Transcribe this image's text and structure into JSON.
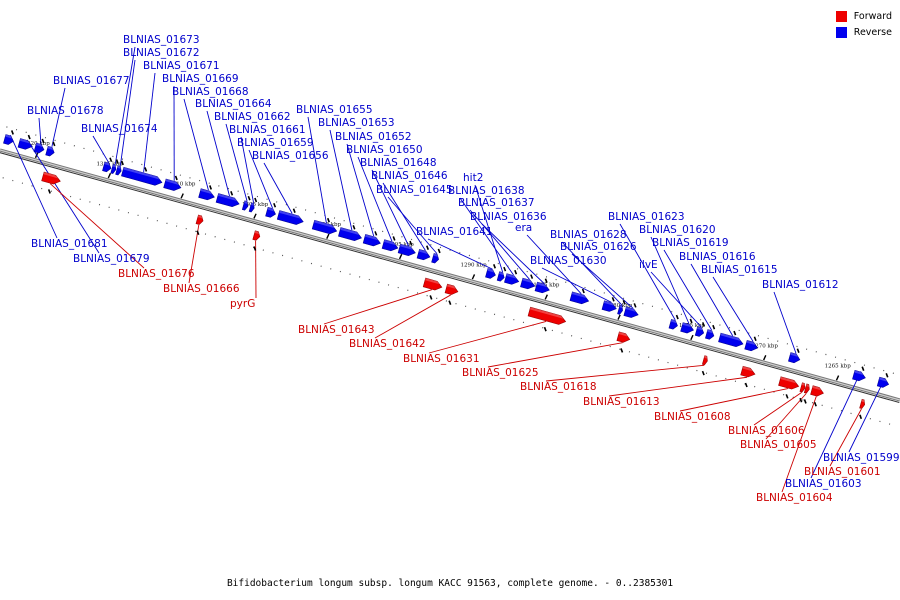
{
  "legend": [
    {
      "label": "Forward",
      "color": "#ee0000"
    },
    {
      "label": "Reverse",
      "color": "#0000ee"
    }
  ],
  "caption": "Bifidobacterium longum subsp. longum KACC 91563, complete genome. - 0..2385301",
  "ticks": [
    {
      "label": "1320 kbp",
      "pos": 1320
    },
    {
      "label": "1315 kbp",
      "pos": 1315
    },
    {
      "label": "1310 kbp",
      "pos": 1310
    },
    {
      "label": "1305 kbp",
      "pos": 1305
    },
    {
      "label": "1300 kbp",
      "pos": 1300
    },
    {
      "label": "1295 kbp",
      "pos": 1295
    },
    {
      "label": "1290 kbp",
      "pos": 1290
    },
    {
      "label": "1285 kbp",
      "pos": 1285
    },
    {
      "label": "1280 kbp",
      "pos": 1280
    },
    {
      "label": "1275 kbp",
      "pos": 1275
    },
    {
      "label": "1270 kbp",
      "pos": 1270
    },
    {
      "label": "1265 kbp",
      "pos": 1265
    }
  ],
  "genes": [
    {
      "name": "BLNIAS_01681",
      "strand": "reverse",
      "start": 1322.3,
      "end": 1321.7
    },
    {
      "name": "BLNIAS_01679",
      "strand": "reverse",
      "start": 1321.3,
      "end": 1320.4
    },
    {
      "name": "BLNIAS_01678",
      "strand": "reverse",
      "start": 1320.2,
      "end": 1319.6
    },
    {
      "name": "BLNIAS_01677",
      "strand": "reverse",
      "start": 1319.4,
      "end": 1318.9
    },
    {
      "name": "BLNIAS_01676",
      "strand": "forward",
      "start": 1319.2,
      "end": 1318.0
    },
    {
      "name": "BLNIAS_01674",
      "strand": "reverse",
      "start": 1315.5,
      "end": 1315.0
    },
    {
      "name": "BLNIAS_01673",
      "strand": "reverse",
      "start": 1314.9,
      "end": 1314.7
    },
    {
      "name": "BLNIAS_01672",
      "strand": "reverse",
      "start": 1314.6,
      "end": 1314.3
    },
    {
      "name": "BLNIAS_01671",
      "strand": "reverse",
      "start": 1314.2,
      "end": 1311.5
    },
    {
      "name": "BLNIAS_01669",
      "strand": "reverse",
      "start": 1311.3,
      "end": 1310.2
    },
    {
      "name": "BLNIAS_01668",
      "strand": "reverse",
      "start": 1308.9,
      "end": 1307.9
    },
    {
      "name": "BLNIAS_01666",
      "strand": "forward",
      "start": 1308.6,
      "end": 1308.2
    },
    {
      "name": "BLNIAS_01664",
      "strand": "reverse",
      "start": 1307.7,
      "end": 1306.2
    },
    {
      "name": "BLNIAS_01662",
      "strand": "reverse",
      "start": 1305.9,
      "end": 1305.6
    },
    {
      "name": "BLNIAS_01661",
      "strand": "reverse",
      "start": 1305.4,
      "end": 1305.2
    },
    {
      "name": "pyrG",
      "strand": "forward",
      "start": 1304.7,
      "end": 1304.3
    },
    {
      "name": "BLNIAS_01659",
      "strand": "reverse",
      "start": 1304.3,
      "end": 1303.7
    },
    {
      "name": "BLNIAS_01656",
      "strand": "reverse",
      "start": 1303.5,
      "end": 1301.8
    },
    {
      "name": "BLNIAS_01655",
      "strand": "reverse",
      "start": 1301.1,
      "end": 1299.5
    },
    {
      "name": "BLNIAS_01653",
      "strand": "reverse",
      "start": 1299.3,
      "end": 1297.8
    },
    {
      "name": "BLNIAS_01652",
      "strand": "reverse",
      "start": 1297.6,
      "end": 1296.5
    },
    {
      "name": "BLNIAS_01650",
      "strand": "reverse",
      "start": 1296.3,
      "end": 1295.3
    },
    {
      "name": "BLNIAS_01648",
      "strand": "reverse",
      "start": 1295.2,
      "end": 1294.1
    },
    {
      "name": "BLNIAS_01646",
      "strand": "reverse",
      "start": 1293.9,
      "end": 1293.1
    },
    {
      "name": "BLNIAS_01645",
      "strand": "reverse",
      "start": 1292.9,
      "end": 1292.5
    },
    {
      "name": "BLNIAS_01643",
      "strand": "forward",
      "start": 1293.0,
      "end": 1291.8
    },
    {
      "name": "BLNIAS_01642",
      "strand": "forward",
      "start": 1291.5,
      "end": 1290.7
    },
    {
      "name": "BLNIAS_01641",
      "strand": "reverse",
      "start": 1289.2,
      "end": 1288.6
    },
    {
      "name": "hit2",
      "strand": "reverse",
      "start": 1288.4,
      "end": 1288.0
    },
    {
      "name": "BLNIAS_01638",
      "strand": "reverse",
      "start": 1287.9,
      "end": 1287.0
    },
    {
      "name": "BLNIAS_01637",
      "strand": "reverse",
      "start": 1286.8,
      "end": 1285.9
    },
    {
      "name": "BLNIAS_01636",
      "strand": "reverse",
      "start": 1285.8,
      "end": 1284.9
    },
    {
      "name": "BLNIAS_01631",
      "strand": "forward",
      "start": 1285.8,
      "end": 1283.3
    },
    {
      "name": "era",
      "strand": "reverse",
      "start": 1283.4,
      "end": 1282.2
    },
    {
      "name": "BLNIAS_01630",
      "strand": "reverse",
      "start": 1281.2,
      "end": 1280.3
    },
    {
      "name": "BLNIAS_01628",
      "strand": "reverse",
      "start": 1280.1,
      "end": 1279.9
    },
    {
      "name": "BLNIAS_01626",
      "strand": "reverse",
      "start": 1279.7,
      "end": 1278.8
    },
    {
      "name": "BLNIAS_01625",
      "strand": "forward",
      "start": 1279.7,
      "end": 1278.9
    },
    {
      "name": "BLNIAS_01623",
      "strand": "reverse",
      "start": 1276.6,
      "end": 1276.1
    },
    {
      "name": "BLNIAS_01620",
      "strand": "reverse",
      "start": 1275.8,
      "end": 1275.0
    },
    {
      "name": "ilvE",
      "strand": "reverse",
      "start": 1274.8,
      "end": 1274.3
    },
    {
      "name": "BLNIAS_01619",
      "strand": "reverse",
      "start": 1274.1,
      "end": 1273.6
    },
    {
      "name": "BLNIAS_01618",
      "strand": "forward",
      "start": 1273.8,
      "end": 1273.6
    },
    {
      "name": "BLNIAS_01616",
      "strand": "reverse",
      "start": 1273.2,
      "end": 1271.6
    },
    {
      "name": "BLNIAS_01615",
      "strand": "reverse",
      "start": 1271.4,
      "end": 1270.6
    },
    {
      "name": "BLNIAS_01613",
      "strand": "forward",
      "start": 1271.2,
      "end": 1270.3
    },
    {
      "name": "BLNIAS_01612",
      "strand": "reverse",
      "start": 1268.4,
      "end": 1267.7
    },
    {
      "name": "BLNIAS_01608",
      "strand": "forward",
      "start": 1268.6,
      "end": 1267.3
    },
    {
      "name": "BLNIAS_01606",
      "strand": "forward",
      "start": 1267.1,
      "end": 1266.9
    },
    {
      "name": "BLNIAS_01605",
      "strand": "forward",
      "start": 1266.8,
      "end": 1266.6
    },
    {
      "name": "BLNIAS_01604",
      "strand": "forward",
      "start": 1266.4,
      "end": 1265.6
    },
    {
      "name": "BLNIAS_01603",
      "strand": "reverse",
      "start": 1264.0,
      "end": 1263.2
    },
    {
      "name": "BLNIAS_01601",
      "strand": "forward",
      "start": 1263.0,
      "end": 1262.8
    },
    {
      "name": "BLNIAS_01599",
      "strand": "reverse",
      "start": 1262.3,
      "end": 1261.6
    }
  ]
}
